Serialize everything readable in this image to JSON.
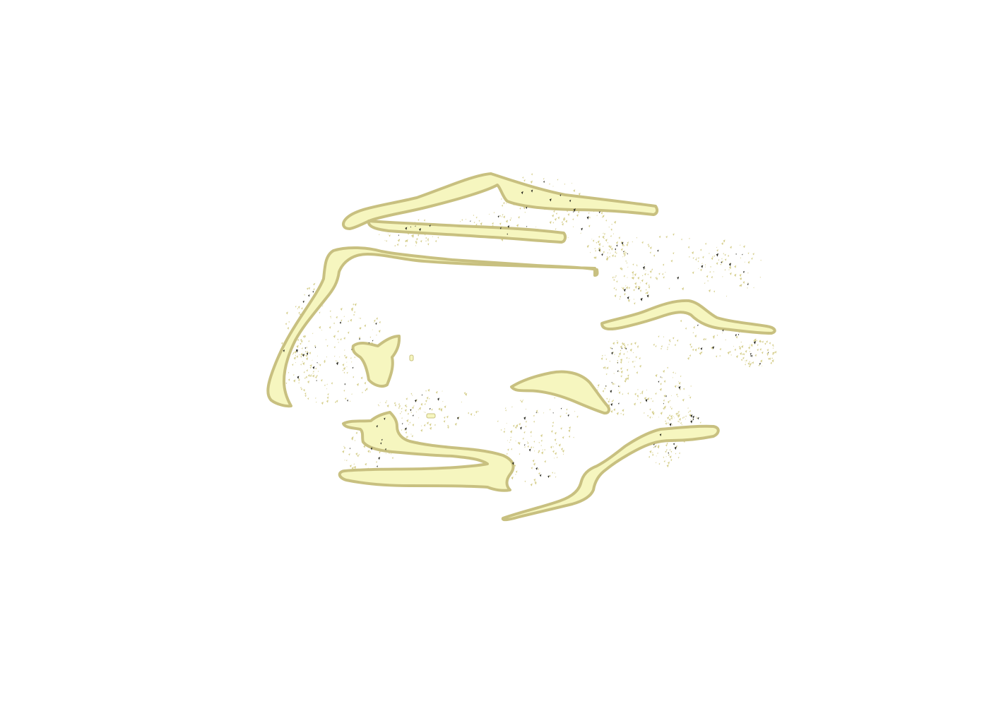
{
  "colors": {
    "background": "#ffffff",
    "shape_fill": "#f6f6bf",
    "shape_highlight": "#fbfbdc",
    "shape_stroke": "#c8c080",
    "speckle": "#d6cf8e",
    "speckle_dark": "#2a2a20"
  },
  "icons": {
    "blob": "organic-yellow-blob",
    "speckle": "speckle-dot"
  }
}
